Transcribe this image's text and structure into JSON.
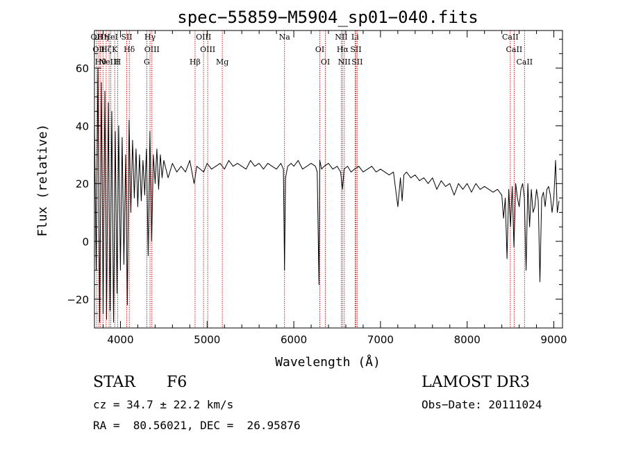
{
  "chart_data": {
    "type": "line",
    "title": "spec−55859−M5904_sp01−040.fits",
    "xlabel": "Wavelength (Å)",
    "ylabel": "Flux (relative)",
    "xlim": [
      3700,
      9100
    ],
    "ylim": [
      -30,
      73
    ],
    "x_ticks": [
      4000,
      5000,
      6000,
      7000,
      8000,
      9000
    ],
    "x_tick_labels": [
      "4000",
      "5000",
      "6000",
      "7000",
      "8000",
      "9000"
    ],
    "y_ticks": [
      -20,
      0,
      20,
      40,
      60
    ],
    "y_tick_labels": [
      "−20",
      "0",
      "20",
      "40",
      "60"
    ],
    "series": [
      {
        "name": "flux",
        "x": [
          3700,
          3720,
          3740,
          3760,
          3780,
          3800,
          3820,
          3840,
          3860,
          3880,
          3900,
          3920,
          3940,
          3960,
          3980,
          4000,
          4020,
          4040,
          4060,
          4080,
          4100,
          4120,
          4140,
          4160,
          4180,
          4200,
          4220,
          4240,
          4260,
          4280,
          4300,
          4320,
          4340,
          4360,
          4380,
          4400,
          4420,
          4440,
          4460,
          4480,
          4500,
          4550,
          4600,
          4650,
          4700,
          4750,
          4800,
          4850,
          4861,
          4880,
          4920,
          4960,
          5000,
          5050,
          5100,
          5150,
          5200,
          5250,
          5300,
          5350,
          5400,
          5450,
          5500,
          5550,
          5600,
          5650,
          5700,
          5750,
          5800,
          5850,
          5880,
          5893,
          5905,
          5930,
          5970,
          6000,
          6050,
          6100,
          6150,
          6200,
          6250,
          6270,
          6290,
          6300,
          6320,
          6350,
          6400,
          6450,
          6500,
          6540,
          6563,
          6580,
          6620,
          6660,
          6700,
          6750,
          6800,
          6850,
          6900,
          6950,
          7000,
          7050,
          7100,
          7150,
          7200,
          7230,
          7250,
          7270,
          7300,
          7350,
          7400,
          7450,
          7500,
          7550,
          7600,
          7650,
          7700,
          7750,
          7800,
          7850,
          7900,
          7950,
          8000,
          8050,
          8100,
          8150,
          8200,
          8250,
          8300,
          8350,
          8400,
          8420,
          8440,
          8460,
          8480,
          8500,
          8520,
          8540,
          8560,
          8580,
          8600,
          8620,
          8640,
          8660,
          8680,
          8700,
          8720,
          8740,
          8760,
          8780,
          8800,
          8820,
          8840,
          8860,
          8880,
          8900,
          8920,
          8940,
          8960,
          8980,
          9000,
          9020,
          9040,
          9060
        ],
        "y": [
          42,
          -10,
          60,
          -28,
          55,
          -25,
          52,
          -27,
          48,
          -24,
          45,
          -28,
          38,
          -18,
          40,
          -10,
          36,
          -8,
          30,
          -22,
          42,
          10,
          35,
          15,
          32,
          12,
          30,
          14,
          28,
          16,
          32,
          -5,
          38,
          0,
          30,
          20,
          32,
          18,
          30,
          22,
          28,
          22,
          27,
          24,
          26,
          24,
          28,
          20,
          22,
          26,
          25,
          24,
          27,
          25,
          26,
          27,
          25,
          28,
          26,
          27,
          26,
          25,
          28,
          26,
          27,
          25,
          27,
          26,
          25,
          27,
          25,
          -10,
          22,
          26,
          27,
          26,
          28,
          25,
          26,
          27,
          26,
          24,
          -15,
          28,
          25,
          26,
          27,
          25,
          26,
          24,
          18,
          25,
          26,
          24,
          25,
          26,
          24,
          25,
          26,
          24,
          25,
          24,
          23,
          24,
          12,
          22,
          14,
          23,
          24,
          22,
          23,
          21,
          22,
          20,
          22,
          18,
          21,
          19,
          20,
          16,
          20,
          18,
          20,
          17,
          20,
          18,
          19,
          18,
          17,
          18,
          16,
          8,
          15,
          -6,
          18,
          5,
          19,
          -2,
          20,
          15,
          12,
          18,
          20,
          15,
          -10,
          20,
          5,
          18,
          10,
          12,
          18,
          14,
          -14,
          15,
          17,
          12,
          18,
          19,
          16,
          10,
          15,
          28,
          10,
          14
        ]
      }
    ],
    "line_markers": [
      {
        "wl": 3727,
        "label": "OII"
      },
      {
        "wl": 3750,
        "label": "OII"
      },
      {
        "wl": 3771,
        "label": "Hθ"
      },
      {
        "wl": 3798,
        "label": "Hη"
      },
      {
        "wl": 3835,
        "label": "Hζ"
      },
      {
        "wl": 3869,
        "label": "NeIII"
      },
      {
        "wl": 3889,
        "label": "HeI"
      },
      {
        "wl": 3934,
        "label": "K"
      },
      {
        "wl": 3969,
        "label": "H"
      },
      {
        "wl": 4072,
        "label": "SII"
      },
      {
        "wl": 4102,
        "label": "Hδ"
      },
      {
        "wl": 4304,
        "label": "G"
      },
      {
        "wl": 4341,
        "label": "Hγ"
      },
      {
        "wl": 4363,
        "label": "OIII"
      },
      {
        "wl": 4861,
        "label": "Hβ"
      },
      {
        "wl": 4959,
        "label": "OIII"
      },
      {
        "wl": 5007,
        "label": "OIII"
      },
      {
        "wl": 5175,
        "label": "Mg"
      },
      {
        "wl": 5893,
        "label": "Na"
      },
      {
        "wl": 6300,
        "label": "OI"
      },
      {
        "wl": 6364,
        "label": "OI"
      },
      {
        "wl": 6548,
        "label": "NII"
      },
      {
        "wl": 6563,
        "label": "Hα"
      },
      {
        "wl": 6583,
        "label": "NII"
      },
      {
        "wl": 6707,
        "label": "Li"
      },
      {
        "wl": 6716,
        "label": "SII"
      },
      {
        "wl": 6731,
        "label": "SII"
      },
      {
        "wl": 8498,
        "label": "CaII"
      },
      {
        "wl": 8542,
        "label": "CaII"
      },
      {
        "wl": 8662,
        "label": "CaII"
      }
    ],
    "grid": false,
    "line_color": "#000000",
    "marker_color": "#cc0000"
  },
  "info": {
    "object_class": "STAR",
    "subclass": "F6",
    "survey": "LAMOST DR3",
    "cz": "cz = 34.7 ± 22.2 km/s",
    "obs_date": "Obs−Date: 20111024",
    "coords": "RA =  80.56021, DEC =  26.95876"
  }
}
